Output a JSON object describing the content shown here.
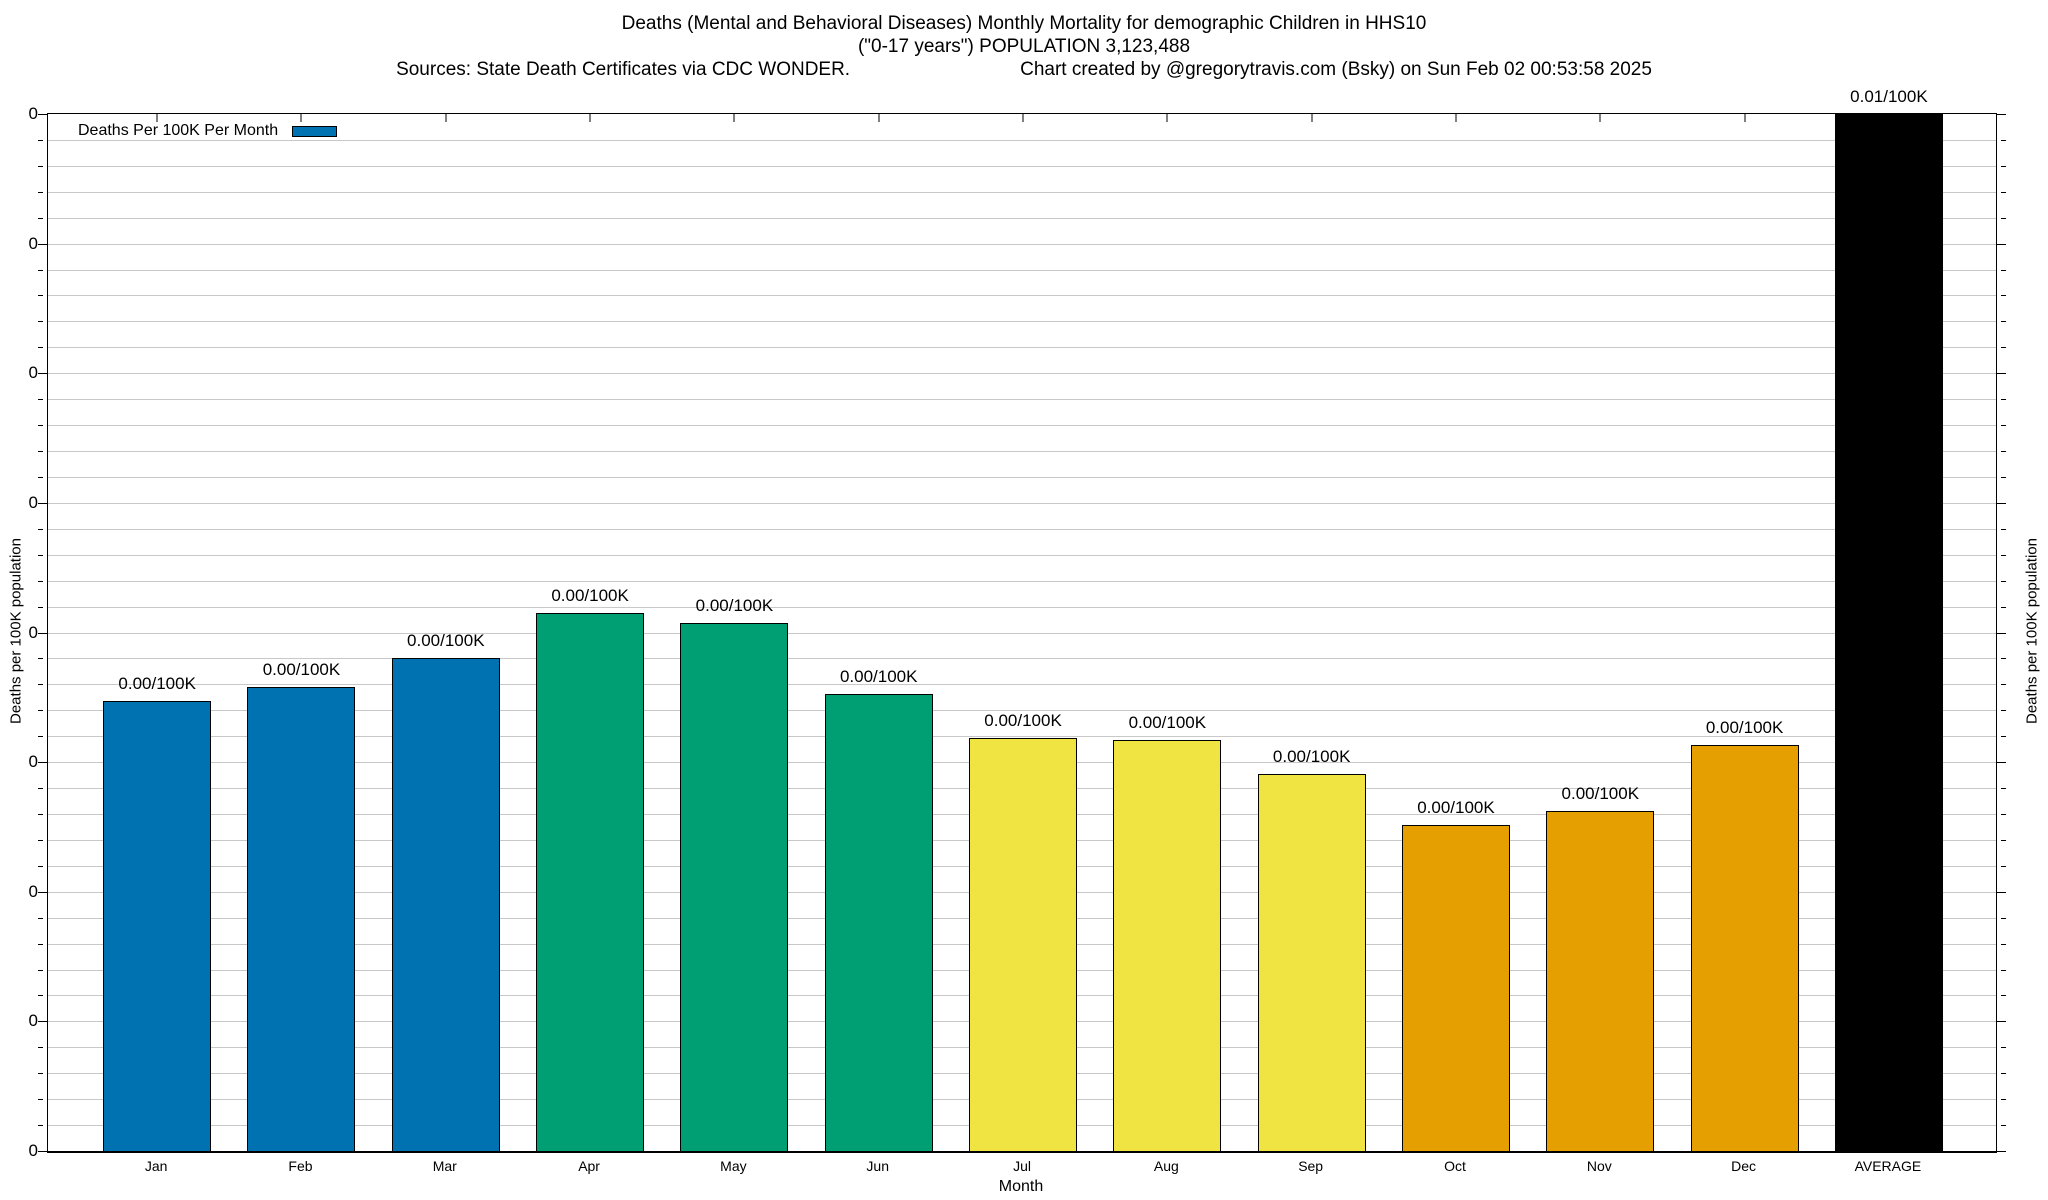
{
  "header": {
    "title_line1": "Deaths (Mental and Behavioral Diseases) Monthly Mortality for demographic Children in HHS10",
    "title_line2": "(\"0-17 years\") POPULATION 3,123,488",
    "sources": "Sources: State Death Certificates via CDC WONDER.",
    "credit": "Chart created by @gregorytravis.com (Bsky) on Sun Feb 02 00:53:58 2025"
  },
  "legend": {
    "label": "Deaths Per 100K Per Month",
    "swatch_color": "#0072B2"
  },
  "axes": {
    "xlabel": "Month",
    "ylabel_left": "Deaths per 100K population",
    "ylabel_right": "Deaths per 100K population"
  },
  "chart_data": {
    "type": "bar",
    "title": "Deaths (Mental and Behavioral Diseases) Monthly Mortality for demographic Children in HHS10 (\"0-17 years\") POPULATION 3,123,488",
    "xlabel": "Month",
    "ylabel": "Deaths per 100K population",
    "categories": [
      "Jan",
      "Feb",
      "Mar",
      "Apr",
      "May",
      "Jun",
      "Jul",
      "Aug",
      "Sep",
      "Oct",
      "Nov",
      "Dec",
      "AVERAGE"
    ],
    "series": [
      {
        "name": "Deaths Per 100K Per Month",
        "values_per_100k_est": [
          0.0043,
          0.0045,
          0.0048,
          0.0052,
          0.0051,
          0.0044,
          0.004,
          0.004,
          0.0036,
          0.0031,
          0.0033,
          0.0039,
          0.01
        ],
        "value_frac_of_axis": [
          0.434,
          0.447,
          0.475,
          0.519,
          0.509,
          0.441,
          0.398,
          0.396,
          0.364,
          0.314,
          0.328,
          0.392,
          1.0
        ],
        "value_labels": [
          "0.00/100K",
          "0.00/100K",
          "0.00/100K",
          "0.00/100K",
          "0.00/100K",
          "0.00/100K",
          "0.00/100K",
          "0.00/100K",
          "0.00/100K",
          "0.00/100K",
          "0.00/100K",
          "0.00/100K",
          "0.01/100K"
        ],
        "bar_colors": [
          "#0072B2",
          "#0072B2",
          "#0072B2",
          "#009E73",
          "#009E73",
          "#009E73",
          "#F0E442",
          "#F0E442",
          "#F0E442",
          "#E69F00",
          "#E69F00",
          "#E69F00",
          "#000000"
        ]
      }
    ],
    "ylim_est": [
      0,
      0.01
    ],
    "y_axis": {
      "major_tick_count": 9,
      "minor_subdivisions_per_major": 5,
      "tick_label_text": "0"
    },
    "grid": true,
    "legend_position": "top-left-inside"
  }
}
